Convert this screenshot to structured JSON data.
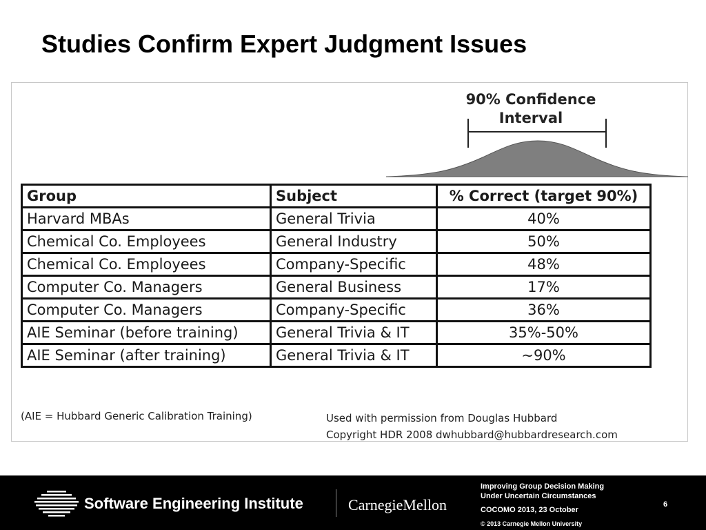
{
  "slide": {
    "title": "Studies Confirm Expert Judgment Issues"
  },
  "figure": {
    "ci_label_line1": "90% Confidence",
    "ci_label_line2": "Interval",
    "table": {
      "headers": [
        "Group",
        "Subject",
        "% Correct (target 90%)"
      ],
      "rows": [
        [
          "Harvard MBAs",
          "General Trivia",
          "40%"
        ],
        [
          "Chemical Co.  Employees",
          "General Industry",
          "50%"
        ],
        [
          "Chemical Co.  Employees",
          "Company-Specific",
          "48%"
        ],
        [
          "Computer Co. Managers",
          "General Business",
          "17%"
        ],
        [
          "Computer Co. Managers",
          "Company-Specific",
          "36%"
        ],
        [
          "AIE Seminar (before training)",
          "General Trivia & IT",
          "35%-50%"
        ],
        [
          "AIE Seminar (after training)",
          "General Trivia & IT",
          "~90%"
        ]
      ]
    },
    "footnote": "(AIE = Hubbard Generic Calibration Training)",
    "permission_line1": "Used with permission from Douglas Hubbard",
    "permission_line2": "Copyright HDR 2008 dwhubbard@hubbardresearch.com"
  },
  "footer": {
    "institute": "Software Engineering Institute",
    "university": "CarnegieMellon",
    "presentation_line1": "Improving Group Decision Making",
    "presentation_line2": "Under Uncertain Circumstances",
    "event": "COCOMO 2013, 23 October",
    "copyright": "© 2013 Carnegie Mellon University",
    "page_number": "6"
  },
  "colors": {
    "curve_fill": "#7f7f7f",
    "footer_bg": "#000000"
  },
  "icons": {
    "sei_logo": "sei-striped-globe-logo"
  }
}
